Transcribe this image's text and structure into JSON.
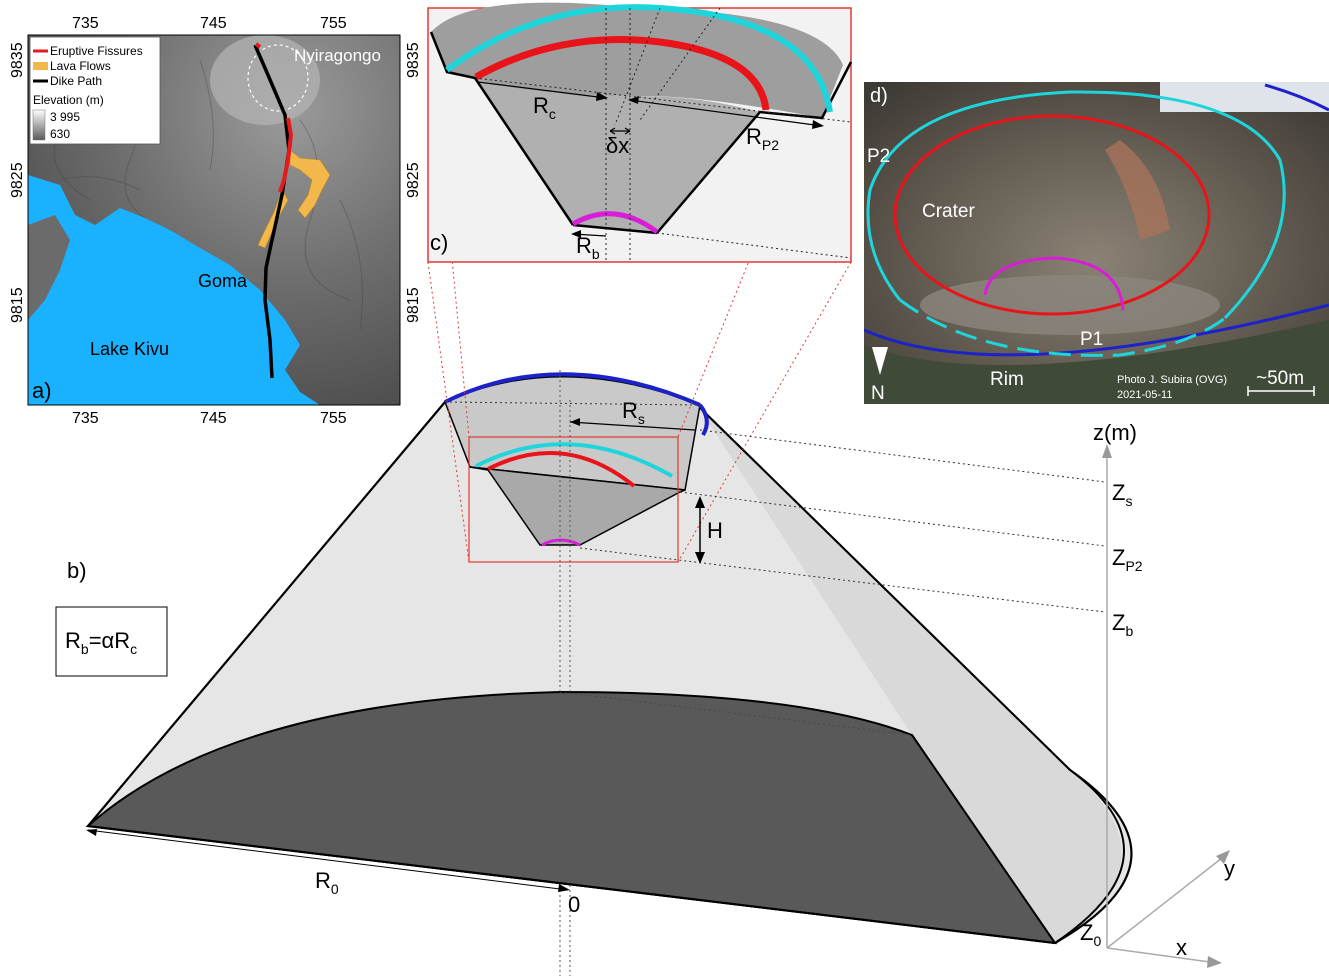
{
  "panels": {
    "a": {
      "tag": "a)",
      "x_ticks": [
        "735",
        "745",
        "755"
      ],
      "y_ticks": [
        "9835",
        "9825",
        "9815"
      ],
      "legend": {
        "items": [
          {
            "label": "Eruptive Fissures",
            "color": "#e41a1c"
          },
          {
            "label": "Lava Flows",
            "color": "#f2b84b"
          },
          {
            "label": "Dike Path",
            "color": "#000000"
          }
        ],
        "elevation_title": "Elevation (m)",
        "elevation_max": "3 995",
        "elevation_min": "630"
      },
      "places": {
        "volcano": "Nyiragongo",
        "city": "Goma",
        "lake": "Lake Kivu"
      }
    },
    "b": {
      "tag": "b)",
      "formula": {
        "r1": "R",
        "r1_sub": "b",
        "mid": "=αR",
        "r2_sub": "c"
      },
      "labels": {
        "rs": "R",
        "rs_sub": "s",
        "h": "H",
        "r0": "R",
        "r0_sub": "0",
        "origin": "0"
      },
      "axes": {
        "z_axis": "z(m)",
        "x_axis": "x",
        "y_axis": "y",
        "zs": "Z",
        "zs_sub": "s",
        "zp2": "Z",
        "zp2_sub": "P2",
        "zb": "Z",
        "zb_sub": "b",
        "z0": "Z",
        "z0_sub": "0"
      }
    },
    "c": {
      "tag": "c)",
      "labels": {
        "rc": "R",
        "rc_sub": "c",
        "rp2": "R",
        "rp2_sub": "P2",
        "dx": "δx",
        "rb": "R",
        "rb_sub": "b"
      }
    },
    "d": {
      "tag": "d)",
      "labels": {
        "p2": "P2",
        "crater": "Crater",
        "p1": "P1",
        "rim": "Rim",
        "north": "N"
      },
      "credit_line1": "Photo J. Subira (OVG)",
      "credit_line2": "2021-05-11",
      "scale": "~50m"
    }
  },
  "colors": {
    "rim": "#1c22c8",
    "p2": "#1fd5dc",
    "crater": "#e8141a",
    "bottom": "#d81ed6",
    "zoom_frame": "#e23a32",
    "lake": "#1ab2ff"
  }
}
